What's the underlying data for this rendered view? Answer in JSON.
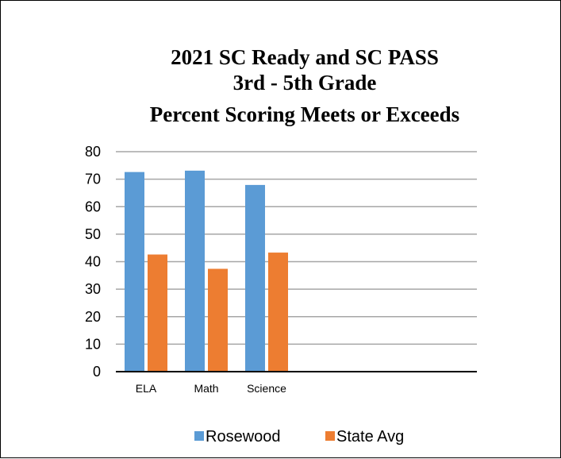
{
  "chart_data": {
    "type": "bar",
    "title_lines": [
      "2021 SC Ready and SC PASS",
      "3rd - 5th Grade",
      "Percent Scoring Meets or Exceeds"
    ],
    "categories": [
      "ELA",
      "Math",
      "Science"
    ],
    "series": [
      {
        "name": "Rosewood",
        "values": [
          72.6,
          73.1,
          67.9
        ],
        "color": "#5B9BD5"
      },
      {
        "name": "State Avg",
        "values": [
          42.6,
          37.4,
          43.3
        ],
        "color": "#ED7D31"
      }
    ],
    "ylim": [
      0,
      80
    ],
    "yticks": [
      0,
      10,
      20,
      30,
      40,
      50,
      60,
      70,
      80
    ],
    "ytick_labels": [
      "0",
      "10",
      "20",
      "30",
      "40",
      "50",
      "60",
      "70",
      "80"
    ],
    "grid": true,
    "legend_position": "bottom",
    "xlabel": "",
    "ylabel": ""
  }
}
